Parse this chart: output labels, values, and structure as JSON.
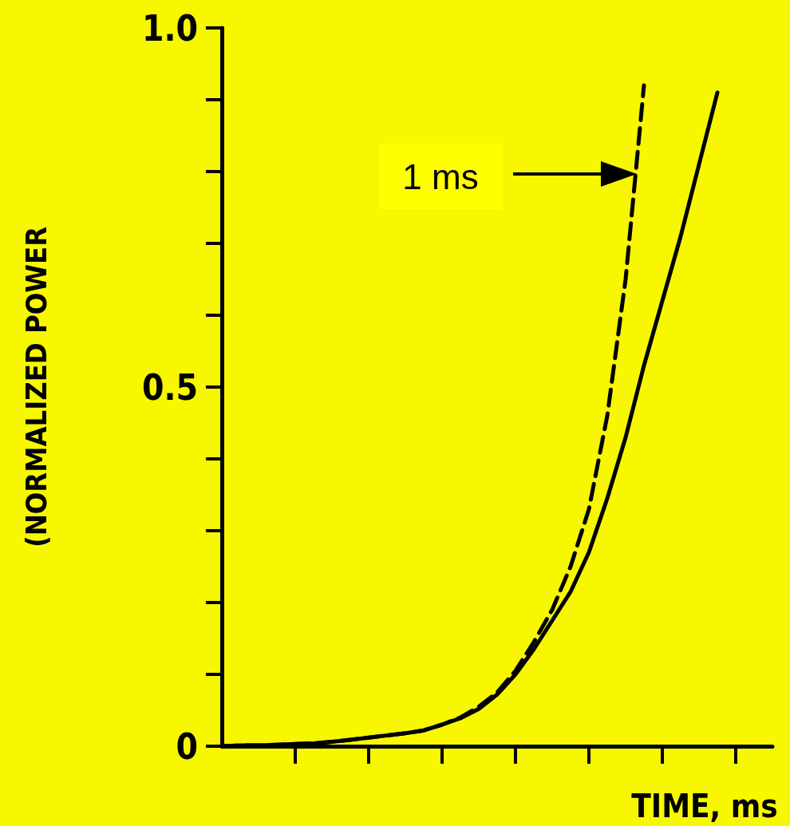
{
  "chart_data": {
    "type": "line",
    "xlabel": "TIME, ms",
    "ylabel": "(NORMALIZED POWER",
    "categories": [
      null,
      null,
      null,
      null,
      null,
      null,
      null,
      null,
      null,
      null,
      null,
      null,
      null,
      null,
      null,
      null,
      null,
      null,
      null,
      null,
      null,
      null,
      null,
      null,
      null,
      null,
      null,
      null,
      null,
      null,
      null
    ],
    "series": [
      {
        "color": "#000000",
        "line_style": "solid",
        "values": [
          0,
          0.001,
          0.001,
          0.002,
          0.003,
          0.004,
          0.006,
          0.009,
          0.012,
          0.015,
          0.018,
          0.022,
          0.03,
          0.039,
          0.052,
          0.072,
          0.1,
          0.135,
          0.175,
          0.215,
          0.27,
          0.345,
          0.43,
          0.53,
          0.62,
          0.71,
          0.81,
          0.91,
          null,
          null,
          null
        ]
      },
      {
        "color": "#000000",
        "line_style": "dashed",
        "values": [
          0,
          0.001,
          0.001,
          0.002,
          0.003,
          0.004,
          0.006,
          0.009,
          0.012,
          0.015,
          0.018,
          0.022,
          0.03,
          0.04,
          0.055,
          0.075,
          0.105,
          0.145,
          0.19,
          0.25,
          0.33,
          0.46,
          0.65,
          0.92,
          null,
          null,
          null,
          null,
          null,
          null,
          null
        ]
      }
    ],
    "ylim": [
      0,
      1.0
    ],
    "yticks": [
      0,
      {
        "value": 0.5,
        "label": "0.5"
      },
      {
        "value": 1.0,
        "label": "1.0"
      }
    ],
    "tick_labels": "y",
    "grid": false,
    "marker": "none",
    "annotations": [
      "1 ms"
    ]
  }
}
